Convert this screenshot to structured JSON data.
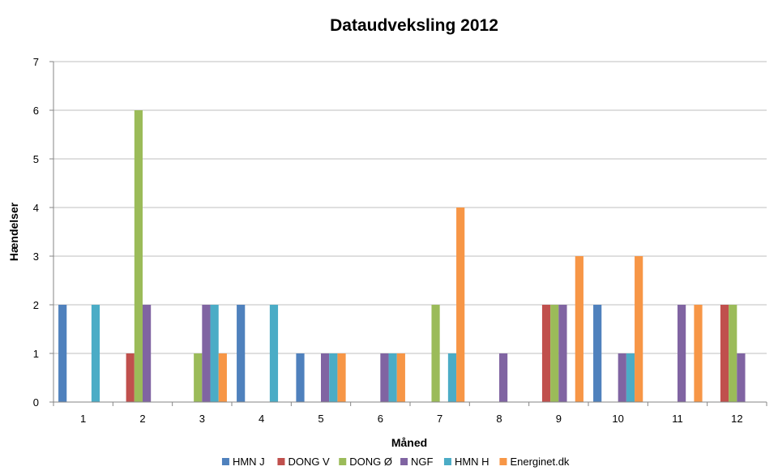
{
  "chart_data": {
    "type": "bar",
    "title": "Dataudveksling 2012",
    "xlabel": "Måned",
    "ylabel": "Hændelser",
    "ylim": [
      0,
      7
    ],
    "yticks": [
      "0",
      "1",
      "2",
      "3",
      "4",
      "5",
      "6",
      "7"
    ],
    "categories": [
      "1",
      "2",
      "3",
      "4",
      "5",
      "6",
      "7",
      "8",
      "9",
      "10",
      "11",
      "12"
    ],
    "grid": true,
    "legend_position": "bottom",
    "series": [
      {
        "name": "HMN J",
        "color": "#4F81BD",
        "values": [
          2,
          0,
          0,
          2,
          1,
          0,
          0,
          0,
          0,
          2,
          0,
          0
        ]
      },
      {
        "name": "DONG V",
        "color": "#C0504D",
        "values": [
          0,
          1,
          0,
          0,
          0,
          0,
          0,
          0,
          2,
          0,
          0,
          2
        ]
      },
      {
        "name": "DONG Ø",
        "color": "#9BBB59",
        "values": [
          0,
          6,
          1,
          0,
          0,
          0,
          2,
          0,
          2,
          0,
          0,
          2
        ]
      },
      {
        "name": "NGF",
        "color": "#8064A2",
        "values": [
          0,
          2,
          2,
          0,
          1,
          1,
          0,
          1,
          2,
          1,
          2,
          1
        ]
      },
      {
        "name": "HMN H",
        "color": "#4BACC6",
        "values": [
          2,
          0,
          2,
          2,
          1,
          1,
          1,
          0,
          0,
          1,
          0,
          0
        ]
      },
      {
        "name": "Energinet.dk",
        "color": "#F79646",
        "values": [
          0,
          0,
          1,
          0,
          1,
          1,
          4,
          0,
          3,
          3,
          2,
          0
        ]
      }
    ]
  }
}
